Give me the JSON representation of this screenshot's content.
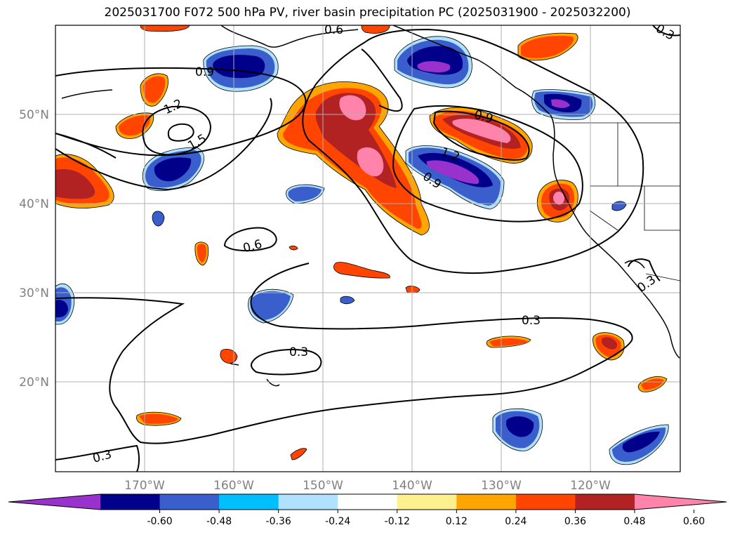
{
  "title": "2025031700 F072 500 hPa PV, river basin precipitation PC (2025031900 - 2025032200)",
  "map": {
    "lat_ticks": [
      {
        "value": 50,
        "label": "50°N"
      },
      {
        "value": 40,
        "label": "40°N"
      },
      {
        "value": 30,
        "label": "30°N"
      },
      {
        "value": 20,
        "label": "20°N"
      }
    ],
    "lon_ticks": [
      {
        "value": -170,
        "label": "170°W"
      },
      {
        "value": -160,
        "label": "160°W"
      },
      {
        "value": -150,
        "label": "150°W"
      },
      {
        "value": -140,
        "label": "140°W"
      },
      {
        "value": -130,
        "label": "130°W"
      },
      {
        "value": -120,
        "label": "120°W"
      }
    ],
    "contour_labels": [
      "0.3",
      "0.6",
      "0.9",
      "1.2",
      "1.5"
    ]
  },
  "colorbar": {
    "ticks": [
      "-0.60",
      "-0.48",
      "-0.36",
      "-0.24",
      "-0.12",
      "0.12",
      "0.24",
      "0.36",
      "0.48",
      "0.60"
    ],
    "colors": [
      "#9932cc",
      "#00008b",
      "#3a5fcd",
      "#00bfff",
      "#b0e2ff",
      "#ffffff",
      "#fff08f",
      "#ffa500",
      "#ff4500",
      "#b22222",
      "#ff83aa"
    ]
  }
}
